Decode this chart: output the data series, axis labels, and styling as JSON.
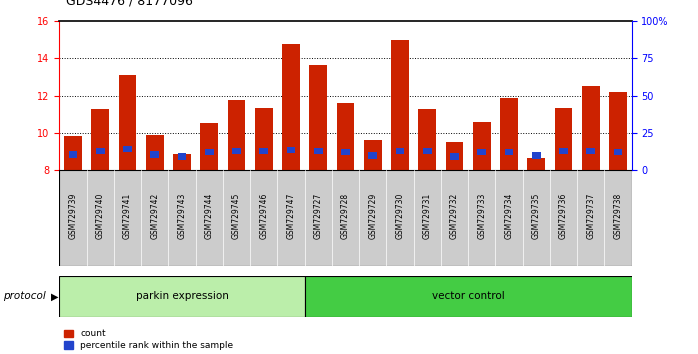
{
  "title": "GDS4476 / 8177096",
  "samples": [
    "GSM729739",
    "GSM729740",
    "GSM729741",
    "GSM729742",
    "GSM729743",
    "GSM729744",
    "GSM729745",
    "GSM729746",
    "GSM729747",
    "GSM729727",
    "GSM729728",
    "GSM729729",
    "GSM729730",
    "GSM729731",
    "GSM729732",
    "GSM729733",
    "GSM729734",
    "GSM729735",
    "GSM729736",
    "GSM729737",
    "GSM729738"
  ],
  "red_values": [
    9.85,
    11.3,
    13.1,
    9.9,
    8.85,
    10.55,
    11.75,
    11.35,
    14.8,
    13.65,
    11.6,
    9.6,
    15.0,
    11.3,
    9.5,
    10.6,
    11.85,
    8.65,
    11.35,
    12.5,
    12.2
  ],
  "blue_values": [
    0.35,
    0.35,
    0.35,
    0.35,
    0.35,
    0.35,
    0.35,
    0.35,
    0.35,
    0.35,
    0.35,
    0.35,
    0.35,
    0.35,
    0.35,
    0.35,
    0.35,
    0.35,
    0.35,
    0.35,
    0.35
  ],
  "blue_bottom": [
    8.65,
    8.85,
    8.95,
    8.65,
    8.55,
    8.8,
    8.85,
    8.85,
    8.9,
    8.85,
    8.8,
    8.6,
    8.85,
    8.85,
    8.55,
    8.8,
    8.8,
    8.6,
    8.85,
    8.85,
    8.8
  ],
  "parkin_count": 9,
  "ylim_left": [
    8,
    16
  ],
  "ylim_right": [
    0,
    100
  ],
  "yticks_left": [
    8,
    10,
    12,
    14,
    16
  ],
  "yticks_right": [
    0,
    25,
    50,
    75,
    100
  ],
  "ytick_labels_right": [
    "0",
    "25",
    "50",
    "75",
    "100%"
  ],
  "bar_color_red": "#cc2200",
  "bar_color_blue": "#2244cc",
  "bg_color": "#cccccc",
  "parkin_label": "parkin expression",
  "vector_label": "vector control",
  "parkin_color": "#bbeeaa",
  "vector_color": "#44cc44",
  "protocol_label": "protocol",
  "legend_count": "count",
  "legend_percentile": "percentile rank within the sample",
  "bar_width": 0.65,
  "title_fontsize": 9,
  "tick_fontsize": 7,
  "label_fontsize": 7.5
}
